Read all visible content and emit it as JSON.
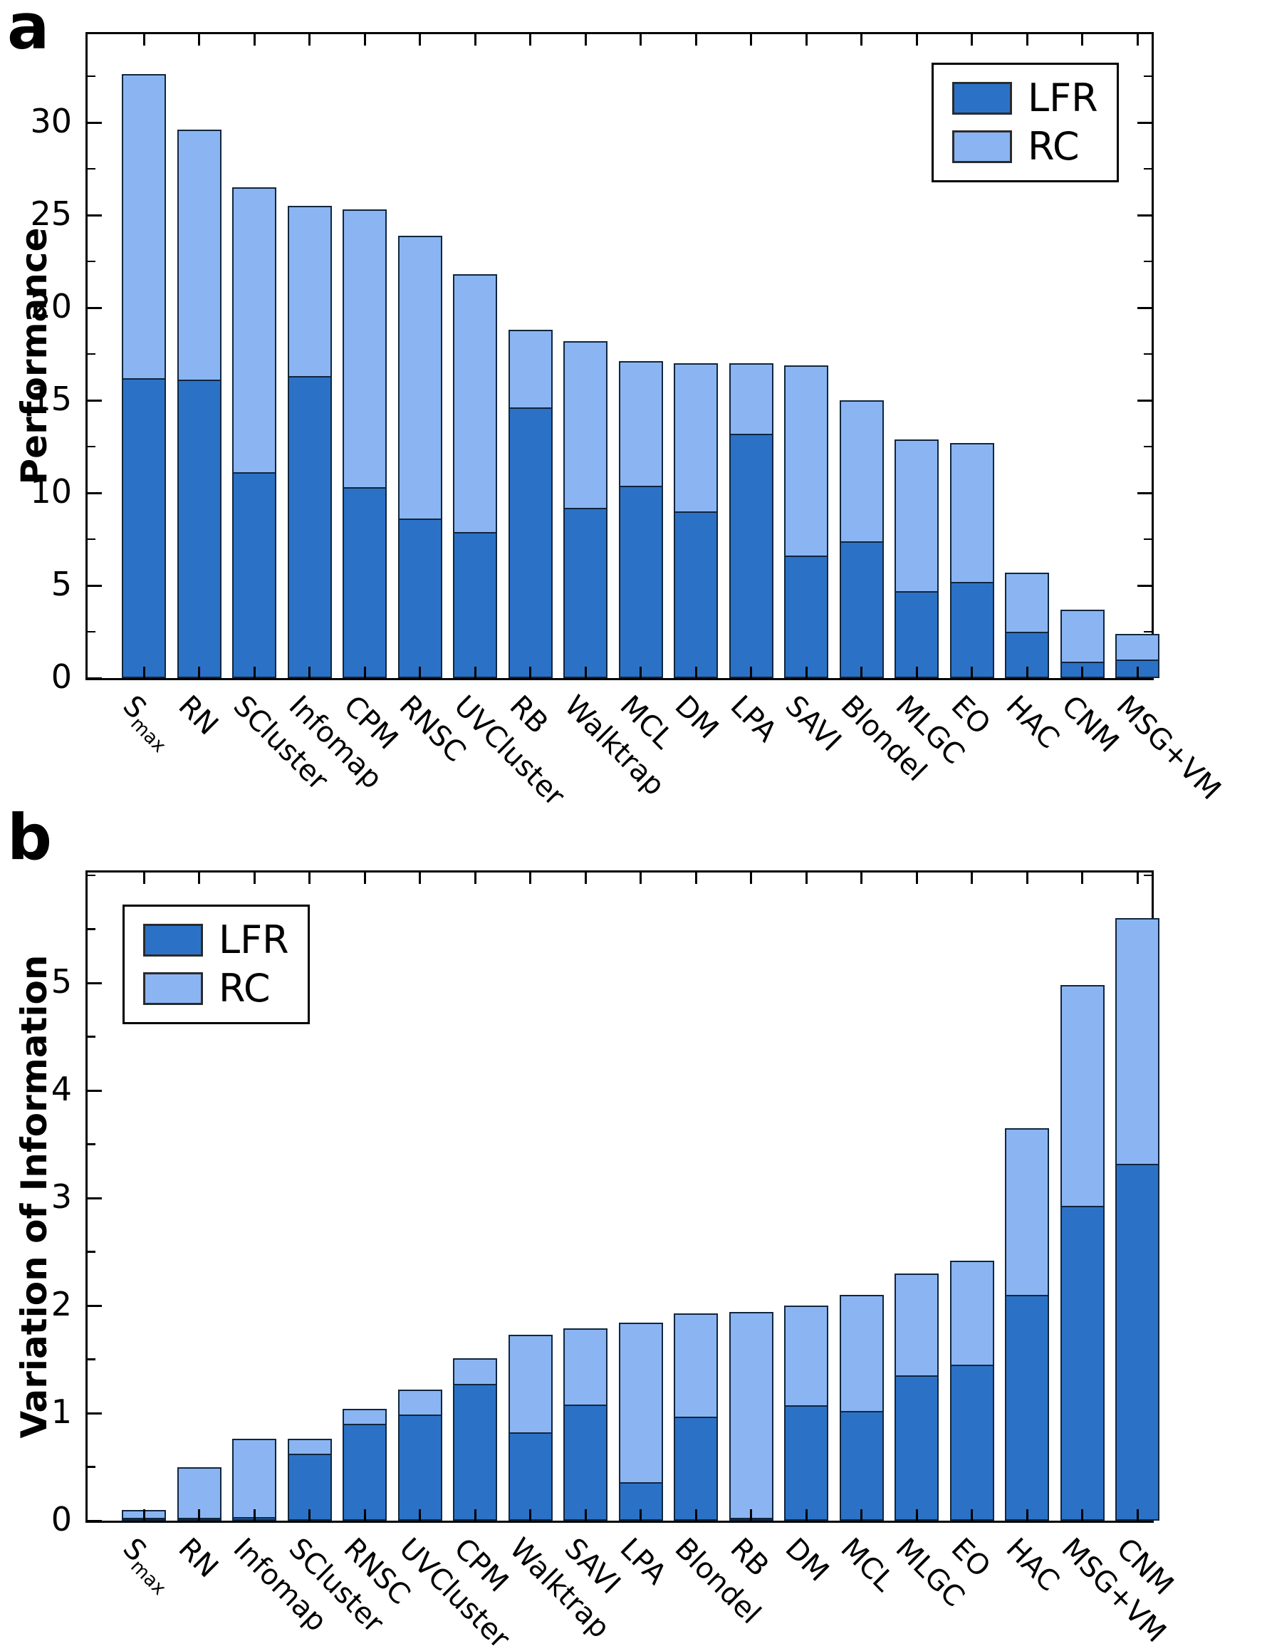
{
  "page": {
    "background": "#ffffff"
  },
  "colors": {
    "lfr": "#2b72c6",
    "rc": "#8ab5f2",
    "bar_border": "#10263f",
    "axis": "#000000"
  },
  "chart_data": [
    {
      "type": "bar",
      "stacked": true,
      "panel_label": "a",
      "ylabel": "Performance",
      "xlabel": "",
      "ylim": [
        0,
        35
      ],
      "yticks": [
        0,
        5,
        10,
        15,
        20,
        25,
        30
      ],
      "ytick_minor_step": 2.5,
      "grid": false,
      "legend": {
        "position": "top-right",
        "entries": [
          "LFR",
          "RC"
        ]
      },
      "categories": [
        "S_max",
        "RN",
        "SCluster",
        "Infomap",
        "CPM",
        "RNSC",
        "UVCluster",
        "RB",
        "Walktrap",
        "MCL",
        "DM",
        "LPA",
        "SAVI",
        "Blondel",
        "MLGC",
        "EO",
        "HAC",
        "CNM",
        "MSG+VM"
      ],
      "series": [
        {
          "name": "LFR",
          "values": [
            16.2,
            16.1,
            11.1,
            16.3,
            10.3,
            8.6,
            7.9,
            14.6,
            9.2,
            10.4,
            9.0,
            13.2,
            6.6,
            7.4,
            4.7,
            5.2,
            2.5,
            0.9,
            1.0
          ]
        },
        {
          "name": "RC",
          "values": [
            16.4,
            13.5,
            15.4,
            9.2,
            15.0,
            15.3,
            13.9,
            4.2,
            9.0,
            6.7,
            8.0,
            3.8,
            10.3,
            7.6,
            8.2,
            7.5,
            3.2,
            2.8,
            1.4
          ]
        }
      ],
      "stack_totals": [
        32.6,
        29.6,
        26.5,
        25.5,
        25.3,
        23.9,
        21.8,
        18.8,
        18.2,
        17.1,
        17.0,
        17.0,
        16.9,
        15.0,
        12.9,
        12.7,
        5.7,
        3.7,
        2.4
      ]
    },
    {
      "type": "bar",
      "stacked": true,
      "panel_label": "b",
      "ylabel": "Variation of Information",
      "xlabel": "",
      "ylim": [
        0,
        6.07
      ],
      "yticks": [
        0,
        1,
        2,
        3,
        4,
        5
      ],
      "ytick_minor_step": 0.5,
      "grid": false,
      "legend": {
        "position": "top-left",
        "entries": [
          "LFR",
          "RC"
        ]
      },
      "categories": [
        "S_max",
        "RN",
        "Infomap",
        "SCluster",
        "RNSC",
        "UVCluster",
        "CPM",
        "Walktrap",
        "SAVI",
        "LPA",
        "Blondel",
        "RB",
        "DM",
        "MCL",
        "MLGC",
        "EO",
        "HAC",
        "MSG+VM",
        "CNM"
      ],
      "series": [
        {
          "name": "LFR",
          "values": [
            0.02,
            0.02,
            0.03,
            0.62,
            0.9,
            0.99,
            1.27,
            0.82,
            1.08,
            0.36,
            0.97,
            0.02,
            1.07,
            1.02,
            1.35,
            1.45,
            2.1,
            2.93,
            3.32
          ]
        },
        {
          "name": "RC",
          "values": [
            0.08,
            0.48,
            0.73,
            0.14,
            0.14,
            0.23,
            0.24,
            0.91,
            0.71,
            1.48,
            0.96,
            1.92,
            0.93,
            1.08,
            0.95,
            0.97,
            1.55,
            2.05,
            2.28
          ]
        }
      ],
      "stack_totals": [
        0.1,
        0.5,
        0.76,
        0.76,
        1.04,
        1.22,
        1.51,
        1.73,
        1.79,
        1.84,
        1.93,
        1.94,
        2.0,
        2.1,
        2.3,
        2.42,
        3.65,
        4.98,
        5.6
      ]
    }
  ]
}
